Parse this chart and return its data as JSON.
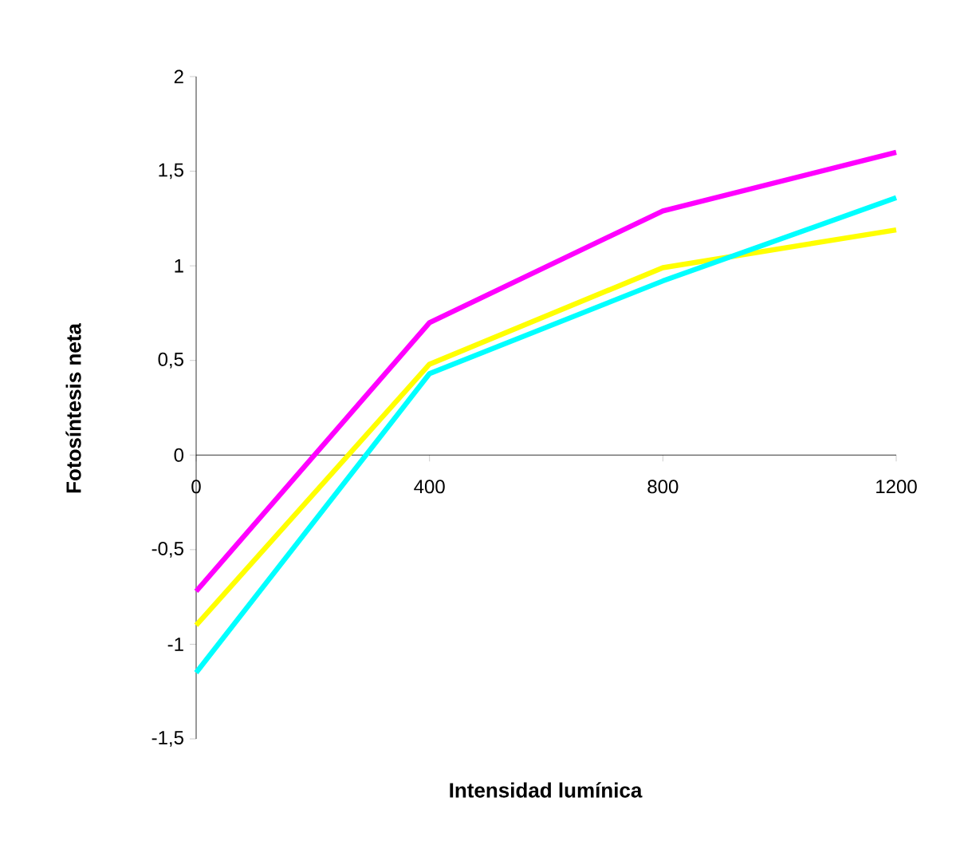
{
  "chart_data": {
    "type": "line",
    "xlabel": "Intensidad lumínica",
    "ylabel": "Fotosíntesis neta",
    "x": [
      0,
      400,
      800,
      1200
    ],
    "series": [
      {
        "color": "#ff00ff",
        "values": [
          -0.72,
          0.7,
          1.29,
          1.6
        ]
      },
      {
        "color": "#ffff00",
        "values": [
          -0.9,
          0.48,
          0.99,
          1.19
        ]
      },
      {
        "color": "#00ffff",
        "values": [
          -1.15,
          0.43,
          0.92,
          1.36
        ]
      }
    ],
    "xlim": [
      0,
      1200
    ],
    "xticks": [
      0,
      400,
      800,
      1200
    ],
    "ylim": [
      -1.5,
      2
    ],
    "yticks": [
      {
        "value": -1.5,
        "label": "-1,5"
      },
      -1,
      {
        "value": -0.5,
        "label": "-0,5"
      },
      0,
      {
        "value": 0.5,
        "label": "0,5"
      },
      1,
      {
        "value": 1.5,
        "label": "1,5"
      },
      2
    ]
  }
}
